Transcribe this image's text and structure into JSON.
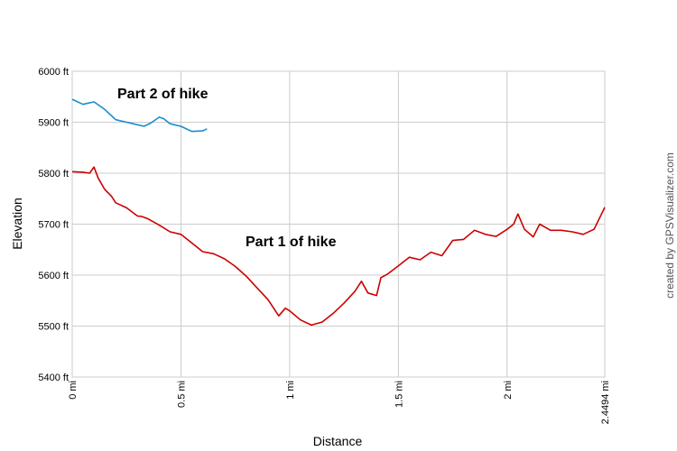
{
  "chart_data": {
    "type": "line",
    "xlabel": "Distance",
    "ylabel": "Elevation",
    "xlim": [
      0,
      2.4494
    ],
    "ylim": [
      5400,
      6000
    ],
    "yticks": [
      {
        "v": 5400,
        "label": "5400 ft"
      },
      {
        "v": 5500,
        "label": "5500 ft"
      },
      {
        "v": 5600,
        "label": "5600 ft"
      },
      {
        "v": 5700,
        "label": "5700 ft"
      },
      {
        "v": 5800,
        "label": "5800 ft"
      },
      {
        "v": 5900,
        "label": "5900 ft"
      },
      {
        "v": 6000,
        "label": "6000 ft"
      }
    ],
    "xticks": [
      {
        "v": 0,
        "label": "0 mi"
      },
      {
        "v": 0.5,
        "label": "0.5 mi"
      },
      {
        "v": 1,
        "label": "1 mi"
      },
      {
        "v": 1.5,
        "label": "1.5 mi"
      },
      {
        "v": 2,
        "label": "2 mi"
      },
      {
        "v": 2.4494,
        "label": "2.4494 mi"
      }
    ],
    "grid": true,
    "annotations": [
      {
        "text": "Part 2 of hike",
        "x": 0.2,
        "y": 5955
      },
      {
        "text": "Part 1 of hike",
        "x": 0.8,
        "y": 5665
      }
    ],
    "credit": "created by GPSVisualizer.com",
    "series": [
      {
        "color": "#cc0000",
        "x": [
          0,
          0.05,
          0.08,
          0.1,
          0.12,
          0.15,
          0.18,
          0.2,
          0.25,
          0.3,
          0.32,
          0.35,
          0.4,
          0.45,
          0.5,
          0.55,
          0.6,
          0.65,
          0.7,
          0.75,
          0.8,
          0.85,
          0.9,
          0.95,
          0.98,
          1.0,
          1.05,
          1.1,
          1.15,
          1.2,
          1.25,
          1.3,
          1.33,
          1.36,
          1.4,
          1.42,
          1.45,
          1.5,
          1.55,
          1.6,
          1.65,
          1.7,
          1.75,
          1.8,
          1.85,
          1.9,
          1.95,
          2.0,
          2.03,
          2.05,
          2.08,
          2.12,
          2.15,
          2.2,
          2.25,
          2.3,
          2.35,
          2.4,
          2.4494
        ],
        "y": [
          5803,
          5802,
          5800,
          5812,
          5790,
          5768,
          5755,
          5742,
          5732,
          5716,
          5715,
          5710,
          5698,
          5685,
          5680,
          5663,
          5646,
          5642,
          5632,
          5617,
          5598,
          5575,
          5552,
          5520,
          5535,
          5530,
          5512,
          5502,
          5508,
          5525,
          5545,
          5568,
          5588,
          5565,
          5560,
          5595,
          5602,
          5618,
          5635,
          5630,
          5645,
          5638,
          5668,
          5670,
          5688,
          5680,
          5676,
          5690,
          5700,
          5720,
          5690,
          5675,
          5700,
          5688,
          5688,
          5685,
          5680,
          5690,
          5733
        ]
      },
      {
        "color": "#1a8ccc",
        "x": [
          0,
          0.05,
          0.1,
          0.15,
          0.2,
          0.25,
          0.3,
          0.33,
          0.36,
          0.4,
          0.42,
          0.45,
          0.5,
          0.55,
          0.6,
          0.62
        ],
        "y": [
          5945,
          5935,
          5940,
          5925,
          5905,
          5900,
          5895,
          5892,
          5898,
          5910,
          5907,
          5897,
          5892,
          5882,
          5883,
          5887
        ]
      }
    ]
  }
}
